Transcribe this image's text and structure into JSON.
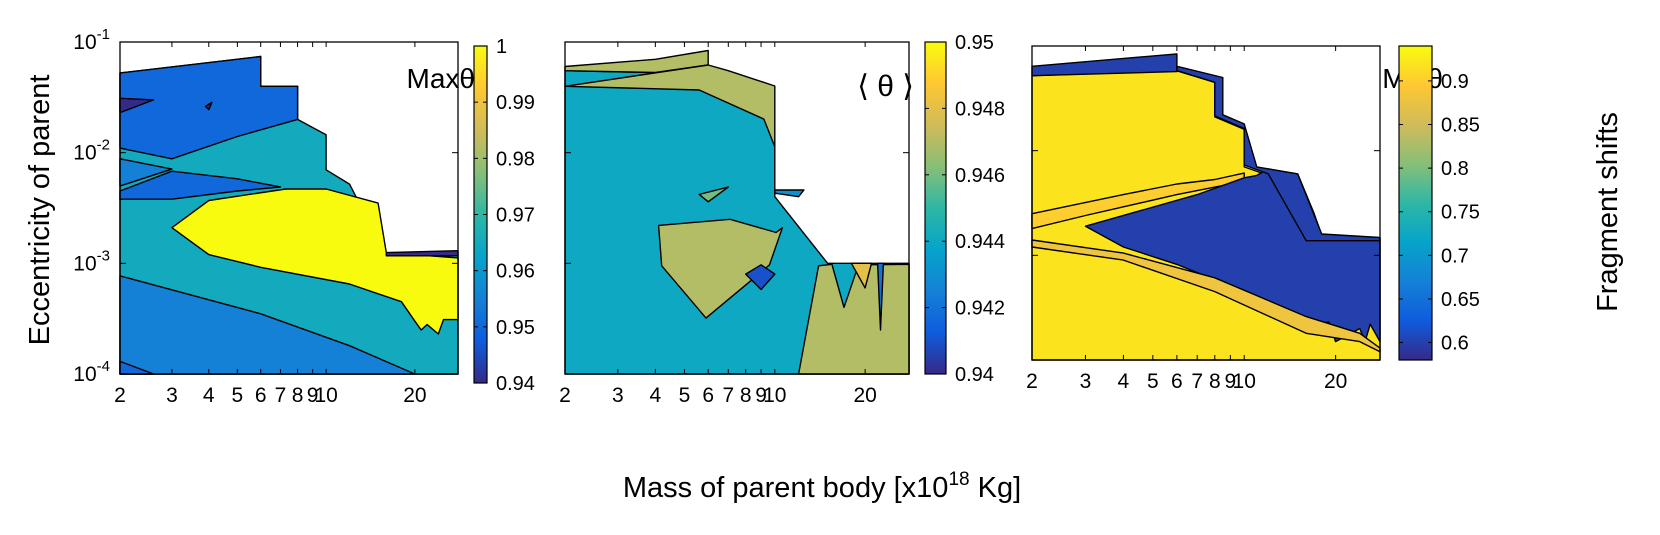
{
  "figure": {
    "ylabel": "Eccentricity of parent",
    "xlabel_main": "Mass of parent body [x10",
    "xlabel_sup": "18",
    "xlabel_tail": " Kg]",
    "colorbar_label": "Fragment shifts"
  },
  "colors": {
    "parula": [
      "#352a87",
      "#0f5cdd",
      "#1481d6",
      "#06a4ca",
      "#2eb7a4",
      "#87bf77",
      "#d1bb59",
      "#fec832",
      "#f9fb0e"
    ],
    "white": "#ffffff",
    "line": "#000000"
  },
  "chart_data": [
    {
      "type": "contourf",
      "panel": "max",
      "title": "Maxθ",
      "x_axis": {
        "scale": "log",
        "range": [
          2,
          28
        ],
        "ticks": [
          2,
          3,
          4,
          5,
          6,
          7,
          8,
          9,
          10,
          20
        ],
        "tick_labels": [
          "2",
          "3",
          "4",
          "5",
          "6",
          "7",
          "8",
          "9",
          "10",
          "20"
        ]
      },
      "y_axis": {
        "scale": "log",
        "range": [
          0.0001,
          0.1
        ],
        "ticks": [
          0.0001,
          0.001,
          0.01,
          0.1
        ],
        "tick_labels": [
          {
            "base": "10",
            "exp": "-4"
          },
          {
            "base": "10",
            "exp": "-3"
          },
          {
            "base": "10",
            "exp": "-2"
          },
          {
            "base": "10",
            "exp": "-1"
          }
        ]
      },
      "colorbar": {
        "range": [
          0.94,
          1.0
        ],
        "ticks": [
          0.94,
          0.95,
          0.96,
          0.97,
          0.98,
          0.99,
          1.0
        ],
        "tick_labels": [
          "0.94",
          "0.95",
          "0.96",
          "0.97",
          "0.98",
          "0.99",
          "1"
        ]
      },
      "regions": [
        {
          "level": 0.965,
          "points": [
            [
              2,
              0.0001
            ],
            [
              28,
              0.0001
            ],
            [
              28,
              0.00117
            ],
            [
              16,
              0.00117
            ],
            [
              12,
              0.0052
            ],
            [
              10,
              0.007
            ],
            [
              10,
              0.0145
            ],
            [
              8,
              0.02
            ],
            [
              8,
              0.0398
            ],
            [
              6,
              0.0398
            ],
            [
              6,
              0.074
            ],
            [
              2,
              0.0525
            ]
          ]
        },
        {
          "level": 0.955,
          "points": [
            [
              2,
              0.0001
            ],
            [
              28,
              0.0001
            ],
            [
              28,
              0.0001
            ],
            [
              20,
              0.0001
            ],
            [
              12,
              0.00018
            ],
            [
              6,
              0.00035
            ],
            [
              2,
              0.00077
            ]
          ]
        },
        {
          "level": 0.95,
          "points": [
            [
              2,
              0.0001
            ],
            [
              2.6,
              0.0001
            ],
            [
              2,
              0.00013
            ]
          ]
        },
        {
          "level": 0.95,
          "points": [
            [
              2,
              0.0525
            ],
            [
              6,
              0.074
            ],
            [
              6,
              0.0398
            ],
            [
              8,
              0.0398
            ],
            [
              8,
              0.02
            ],
            [
              5,
              0.014
            ],
            [
              3,
              0.0088
            ],
            [
              2,
              0.011
            ]
          ]
        },
        {
          "level": 0.95,
          "points": [
            [
              2,
              0.0045
            ],
            [
              3,
              0.0068
            ],
            [
              5,
              0.0058
            ],
            [
              7,
              0.0049
            ],
            [
              5,
              0.0045
            ],
            [
              3,
              0.0038
            ],
            [
              2,
              0.0038
            ]
          ]
        },
        {
          "level": 0.955,
          "points": [
            [
              2,
              0.0088
            ],
            [
              3,
              0.0071
            ],
            [
              2,
              0.005
            ]
          ]
        },
        {
          "level": 0.94,
          "points": [
            [
              2,
              0.023
            ],
            [
              2.6,
              0.03
            ],
            [
              2,
              0.031
            ]
          ]
        },
        {
          "level": 0.94,
          "points": [
            [
              3.9,
              0.0262
            ],
            [
              4.1,
              0.0285
            ],
            [
              4,
              0.0245
            ]
          ]
        },
        {
          "level": 1.0,
          "points": [
            [
              3,
              0.0021
            ],
            [
              4,
              0.0037
            ],
            [
              7.3,
              0.0047
            ],
            [
              10,
              0.0047
            ],
            [
              15,
              0.0035
            ],
            [
              16,
              0.00125
            ],
            [
              28,
              0.00112
            ],
            [
              28,
              0.00031
            ],
            [
              25,
              0.00031
            ],
            [
              24,
              0.00023
            ],
            [
              22,
              0.00028
            ],
            [
              21,
              0.00025
            ],
            [
              20,
              0.0003
            ],
            [
              18,
              0.00045
            ],
            [
              12,
              0.00065
            ],
            [
              6,
              0.00092
            ],
            [
              4,
              0.0012
            ]
          ]
        },
        {
          "level": 0.94,
          "points": [
            [
              16,
              0.00117
            ],
            [
              28,
              0.00117
            ],
            [
              28,
              0.0013
            ],
            [
              16,
              0.00125
            ]
          ]
        }
      ]
    },
    {
      "type": "contourf",
      "panel": "mean",
      "title": "⟨ θ ⟩",
      "x_axis": {
        "scale": "log",
        "range": [
          2,
          28
        ],
        "ticks": [
          2,
          3,
          4,
          5,
          6,
          7,
          8,
          9,
          10,
          20
        ],
        "tick_labels": [
          "2",
          "3",
          "4",
          "5",
          "6",
          "7",
          "8",
          "9",
          "10",
          "20"
        ]
      },
      "y_axis": {
        "scale": "log",
        "range": [
          0.0001,
          0.1
        ],
        "ticks": [
          0.0001,
          0.001,
          0.01,
          0.1
        ]
      },
      "colorbar": {
        "range": [
          0.94,
          0.95
        ],
        "ticks": [
          0.94,
          0.942,
          0.944,
          0.946,
          0.948,
          0.95
        ],
        "tick_labels": [
          "0.94",
          "0.942",
          "0.944",
          "0.946",
          "0.948",
          "0.95"
        ]
      },
      "regions": [
        {
          "level": 0.944,
          "points": [
            [
              2,
              0.0001
            ],
            [
              28,
              0.0001
            ],
            [
              28,
              0.001
            ],
            [
              15,
              0.001
            ],
            [
              10,
              0.004
            ],
            [
              10,
              0.01
            ],
            [
              10,
              0.02
            ],
            [
              7,
              0.033
            ],
            [
              6,
              0.062
            ],
            [
              4,
              0.053
            ],
            [
              2,
              0.055
            ]
          ]
        },
        {
          "level": 0.947,
          "points": [
            [
              2,
              0.055
            ],
            [
              4,
              0.053
            ],
            [
              6,
              0.062
            ],
            [
              6,
              0.0838
            ],
            [
              4,
              0.0698
            ],
            [
              2,
              0.0601
            ]
          ]
        },
        {
          "level": 0.947,
          "points": [
            [
              2,
              0.0398
            ],
            [
              5.6,
              0.0368
            ],
            [
              9.2,
              0.0201
            ],
            [
              10,
              0.0113
            ],
            [
              10,
              0.04
            ],
            [
              7,
              0.055
            ],
            [
              6,
              0.062
            ]
          ]
        },
        {
          "level": 0.947,
          "points": [
            [
              4.1,
              0.0022
            ],
            [
              7.1,
              0.0025
            ],
            [
              10.1,
              0.0019
            ],
            [
              10.6,
              0.0021
            ],
            [
              9.6,
              0.00097
            ],
            [
              8.6,
              0.00075
            ],
            [
              5.9,
              0.00032
            ],
            [
              4.2,
              0.00095
            ]
          ]
        },
        {
          "level": 0.947,
          "points": [
            [
              12,
              0.0001
            ],
            [
              14,
              0.00095
            ],
            [
              15.5,
              0.00098
            ],
            [
              17,
              0.0004
            ],
            [
              19,
              0.00097
            ],
            [
              28,
              0.00098
            ],
            [
              28,
              0.0001
            ]
          ]
        },
        {
          "level": 0.941,
          "points": [
            [
              9,
              0.00097
            ],
            [
              10,
              0.0008
            ],
            [
              9,
              0.00058
            ],
            [
              8,
              0.0008
            ]
          ]
        },
        {
          "level": 0.943,
          "points": [
            [
              10,
              0.0046
            ],
            [
              12.5,
              0.0046
            ],
            [
              12,
              0.004
            ],
            [
              10,
              0.0043
            ]
          ]
        },
        {
          "level": 0.946,
          "points": [
            [
              5.6,
              0.0042
            ],
            [
              7,
              0.0049
            ],
            [
              6,
              0.0036
            ]
          ]
        },
        {
          "level": 0.948,
          "points": [
            [
              18,
              0.001
            ],
            [
              21,
              0.001
            ],
            [
              20,
              0.0006
            ]
          ]
        },
        {
          "level": 0.942,
          "points": [
            [
              22,
              0.001
            ],
            [
              23,
              0.001
            ],
            [
              22.5,
              0.00025
            ]
          ]
        }
      ]
    },
    {
      "type": "contourf",
      "panel": "min",
      "title": "Minθ",
      "x_axis": {
        "scale": "log",
        "range": [
          2,
          28
        ],
        "ticks": [
          2,
          3,
          4,
          5,
          6,
          7,
          8,
          9,
          10,
          20
        ],
        "tick_labels": [
          "2",
          "3",
          "4",
          "5",
          "6",
          "7",
          "8",
          "9",
          "10",
          "20"
        ]
      },
      "y_axis": {
        "scale": "log",
        "range": [
          0.0001,
          0.1
        ],
        "ticks": [
          0.0001,
          0.001,
          0.01,
          0.1
        ]
      },
      "colorbar": {
        "range": [
          0.58,
          0.94
        ],
        "ticks": [
          0.6,
          0.65,
          0.7,
          0.75,
          0.8,
          0.85,
          0.9
        ],
        "tick_labels": [
          "0.6",
          "0.65",
          "0.7",
          "0.75",
          "0.8",
          "0.85",
          "0.9"
        ]
      },
      "regions": [
        {
          "level": 0.92,
          "points": [
            [
              2,
              0.0001
            ],
            [
              28,
              0.0001
            ],
            [
              28,
              0.0014
            ],
            [
              16,
              0.0014
            ],
            [
              12,
              0.0058
            ],
            [
              10,
              0.007
            ],
            [
              10,
              0.016
            ],
            [
              8,
              0.021
            ],
            [
              8,
              0.045
            ],
            [
              6,
              0.058
            ],
            [
              2,
              0.052
            ]
          ]
        },
        {
          "level": 0.9,
          "points": [
            [
              2,
              0.0018
            ],
            [
              3,
              0.0024
            ],
            [
              6,
              0.0038
            ],
            [
              10,
              0.0051
            ],
            [
              10,
              0.0061
            ],
            [
              8,
              0.0053
            ],
            [
              6,
              0.0048
            ],
            [
              4,
              0.0038
            ],
            [
              2,
              0.0025
            ]
          ]
        },
        {
          "level": 0.6,
          "points": [
            [
              3,
              0.0019
            ],
            [
              7,
              0.0038
            ],
            [
              10,
              0.0055
            ],
            [
              11,
              0.0058
            ],
            [
              12,
              0.0067
            ],
            [
              15,
              0.006
            ],
            [
              17,
              0.0025
            ],
            [
              18,
              0.00155
            ],
            [
              28,
              0.00145
            ],
            [
              28,
              0.00015
            ],
            [
              26,
              0.00022
            ],
            [
              25,
              0.00015
            ],
            [
              24,
              0.0002
            ],
            [
              20,
              0.00015
            ],
            [
              19,
              0.00023
            ],
            [
              15,
              0.00022
            ],
            [
              10,
              0.00045
            ],
            [
              6,
              0.00082
            ],
            [
              4,
              0.0012
            ]
          ]
        },
        {
          "level": 0.6,
          "points": [
            [
              2,
              0.052
            ],
            [
              6,
              0.057
            ],
            [
              6,
              0.084
            ],
            [
              2,
              0.064
            ]
          ]
        },
        {
          "level": 0.6,
          "points": [
            [
              6,
              0.0582
            ],
            [
              8,
              0.045
            ],
            [
              8,
              0.0215
            ],
            [
              10,
              0.0163
            ],
            [
              10,
              0.0073
            ],
            [
              12,
              0.006
            ],
            [
              16,
              0.00138
            ],
            [
              28,
              0.00138
            ],
            [
              28,
              0.00148
            ],
            [
              18,
              0.0016
            ],
            [
              15,
              0.006
            ],
            [
              11,
              0.007
            ],
            [
              10,
              0.018
            ],
            [
              8.5,
              0.022
            ],
            [
              8.5,
              0.05
            ],
            [
              6,
              0.064
            ]
          ]
        },
        {
          "level": 0.88,
          "points": [
            [
              2,
              0.0012
            ],
            [
              4,
              0.0009
            ],
            [
              8,
              0.00045
            ],
            [
              16,
              0.00018
            ],
            [
              24,
              0.00015
            ],
            [
              28,
              0.00012
            ],
            [
              28,
              0.00013
            ],
            [
              24,
              0.00018
            ],
            [
              16,
              0.00026
            ],
            [
              8,
              0.00061
            ],
            [
              4,
              0.00105
            ],
            [
              2,
              0.0014
            ]
          ]
        }
      ]
    }
  ]
}
